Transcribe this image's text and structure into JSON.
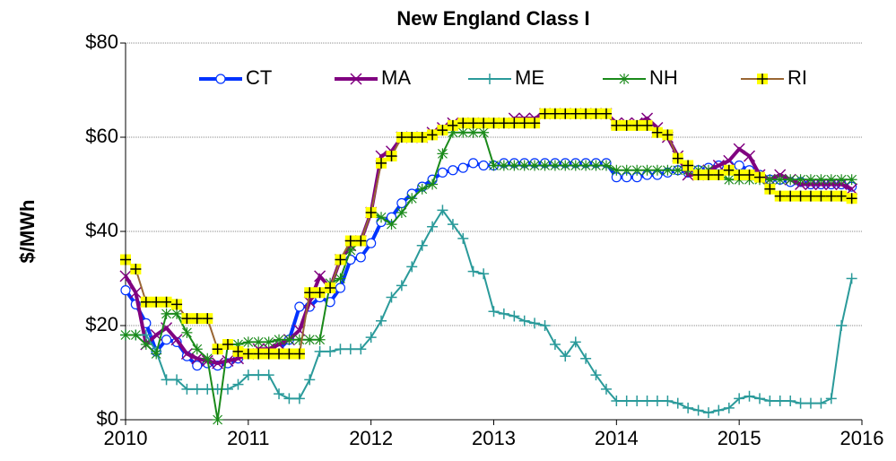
{
  "chart_data": {
    "type": "line",
    "title": "New England Class I",
    "y_label": "$/MWh",
    "x": [
      2010,
      2010.083,
      2010.167,
      2010.25,
      2010.333,
      2010.417,
      2010.5,
      2010.583,
      2010.667,
      2010.75,
      2010.833,
      2010.917,
      2011,
      2011.083,
      2011.167,
      2011.25,
      2011.333,
      2011.417,
      2011.5,
      2011.583,
      2011.667,
      2011.75,
      2011.833,
      2011.917,
      2012,
      2012.083,
      2012.167,
      2012.25,
      2012.333,
      2012.417,
      2012.5,
      2012.583,
      2012.667,
      2012.75,
      2012.833,
      2012.917,
      2013,
      2013.083,
      2013.167,
      2013.25,
      2013.333,
      2013.417,
      2013.5,
      2013.583,
      2013.667,
      2013.75,
      2013.833,
      2013.917,
      2014,
      2014.083,
      2014.167,
      2014.25,
      2014.333,
      2014.417,
      2014.5,
      2014.583,
      2014.667,
      2014.75,
      2014.833,
      2014.917,
      2015,
      2015.083,
      2015.167,
      2015.25,
      2015.333,
      2015.417,
      2015.5,
      2015.583,
      2015.667,
      2015.75,
      2015.833,
      2015.917
    ],
    "series": [
      {
        "name": "CT",
        "color": "#0033ff",
        "marker": "circle",
        "values": [
          27.5,
          24.5,
          20.5,
          14.5,
          17,
          16.5,
          13.5,
          11.5,
          12,
          11.5,
          12,
          13,
          14,
          14,
          14,
          15,
          17,
          24,
          24,
          26,
          25,
          28,
          34,
          34.5,
          37.5,
          42,
          43,
          46,
          48,
          49.5,
          51,
          52.5,
          53,
          53.5,
          54.5,
          54,
          54,
          54.5,
          54.5,
          54.5,
          54.5,
          54.5,
          54.5,
          54.5,
          54.5,
          54.5,
          54.5,
          54.5,
          51.5,
          51.5,
          51.5,
          52,
          52,
          52.5,
          53,
          52.5,
          53,
          53.5,
          54,
          54,
          54,
          53,
          52,
          51,
          51,
          50.5,
          50.5,
          50,
          50,
          50,
          50,
          49.5
        ]
      },
      {
        "name": "MA",
        "color": "#800080",
        "marker": "x",
        "values": [
          30.5,
          27,
          16,
          18,
          19.5,
          17,
          14,
          13,
          12.5,
          12,
          12.5,
          13,
          14,
          15,
          15,
          16,
          17,
          19,
          25,
          30.5,
          28,
          34,
          37,
          38,
          44,
          56,
          57,
          60,
          60,
          60,
          61,
          62,
          63,
          63,
          63,
          63,
          63,
          63,
          64,
          64,
          64,
          65,
          65,
          65,
          65,
          65,
          65,
          65,
          63,
          63,
          63,
          64,
          62,
          60,
          56,
          52,
          52,
          53,
          54,
          55,
          57.5,
          56,
          52,
          51,
          52,
          51,
          50,
          50,
          50,
          50,
          50,
          49
        ]
      },
      {
        "name": "ME",
        "color": "#2a9a9a",
        "marker": "plus",
        "values": [
          18,
          18,
          18,
          14.5,
          8.5,
          8.5,
          6.5,
          6.5,
          6.5,
          6.5,
          6.5,
          7.5,
          9.5,
          9.5,
          9.5,
          5.5,
          4.5,
          4.5,
          8.5,
          14.5,
          14.5,
          15,
          15,
          15,
          17.5,
          21,
          26,
          28.5,
          32.5,
          37,
          41,
          44.5,
          41.5,
          38.5,
          31.5,
          31,
          23,
          22.5,
          22,
          21,
          20.5,
          20,
          16,
          13.5,
          16.5,
          13,
          9.5,
          6.5,
          4,
          4,
          4,
          4,
          4,
          4,
          3.5,
          2.5,
          2,
          1.5,
          2,
          2.5,
          4.5,
          5,
          4.5,
          4,
          4,
          4,
          3.5,
          3.5,
          3.5,
          4.5,
          20,
          30
        ]
      },
      {
        "name": "NH",
        "color": "#1a8a1a",
        "marker": "star",
        "values": [
          18,
          18,
          16,
          14,
          22.5,
          22.5,
          18.5,
          15,
          13,
          0,
          16,
          16,
          16.5,
          16.5,
          16.5,
          17,
          17,
          17,
          17,
          17,
          29,
          30,
          36,
          38,
          44,
          43,
          41.5,
          44,
          47,
          49,
          50,
          56.5,
          61,
          61,
          61,
          61,
          54,
          54,
          54,
          54,
          54,
          54,
          54,
          54,
          54,
          54,
          54,
          54,
          53,
          53,
          53,
          53,
          53,
          53,
          53,
          53,
          53,
          53,
          52,
          51,
          51,
          51,
          51,
          51,
          51,
          51,
          51,
          51,
          51,
          51,
          51,
          51
        ]
      },
      {
        "name": "RI",
        "color": "#996633",
        "marker": "square-plus",
        "marker_fill": "#ffff00",
        "values": [
          34,
          32,
          25,
          25,
          25,
          24.5,
          21.5,
          21.5,
          21.5,
          15,
          16,
          14.5,
          14,
          14,
          14,
          14,
          14,
          14,
          27,
          27,
          28,
          34,
          38,
          38,
          44,
          54.5,
          56,
          60,
          60,
          60,
          60.5,
          61.5,
          62.5,
          63,
          63,
          63,
          63,
          63,
          63,
          63,
          63,
          65,
          65,
          65,
          65,
          65,
          65,
          65,
          62.5,
          62.5,
          62.5,
          62.5,
          61,
          60.5,
          55.5,
          54,
          52,
          52,
          52,
          53,
          52,
          52,
          51.5,
          49,
          47.5,
          47.5,
          47.5,
          47.5,
          47.5,
          47.5,
          47.5,
          47
        ]
      }
    ],
    "xlim": [
      2010,
      2016
    ],
    "xticks": [
      2010,
      2011,
      2012,
      2013,
      2014,
      2015,
      2016
    ],
    "ylim": [
      0,
      80
    ],
    "yticks": [
      {
        "value": 0,
        "label": "$0"
      },
      {
        "value": 20,
        "label": "$20"
      },
      {
        "value": 40,
        "label": "$40"
      },
      {
        "value": 60,
        "label": "$60"
      },
      {
        "value": 80,
        "label": "$80"
      }
    ],
    "grid": true,
    "legend": "top"
  }
}
